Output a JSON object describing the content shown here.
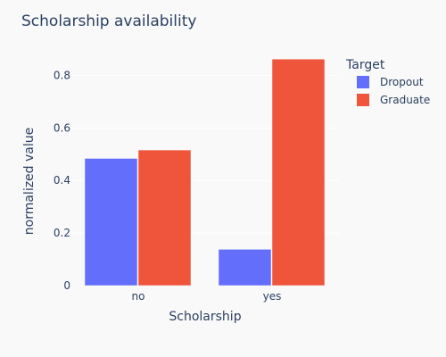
{
  "chart_data": {
    "type": "bar",
    "title": "Scholarship availability",
    "xlabel": "Scholarship",
    "ylabel": "normalized value",
    "categories": [
      "no",
      "yes"
    ],
    "series": [
      {
        "name": "Dropout",
        "values": [
          0.484,
          0.138
        ]
      },
      {
        "name": "Graduate",
        "values": [
          0.516,
          0.862
        ]
      }
    ],
    "ylim": [
      0,
      0.9
    ],
    "yticks": [
      0,
      0.2,
      0.4,
      0.6,
      0.8
    ],
    "ytick_labels": [
      "0",
      "0.2",
      "0.4",
      "0.6",
      "0.8"
    ],
    "legend": {
      "title": "Target",
      "position": "top-right"
    },
    "grid": true
  },
  "colors": {
    "Dropout": "#636efa",
    "Graduate": "#ef553b",
    "background": "#f9f9fa",
    "text": "#2a3f5f"
  }
}
